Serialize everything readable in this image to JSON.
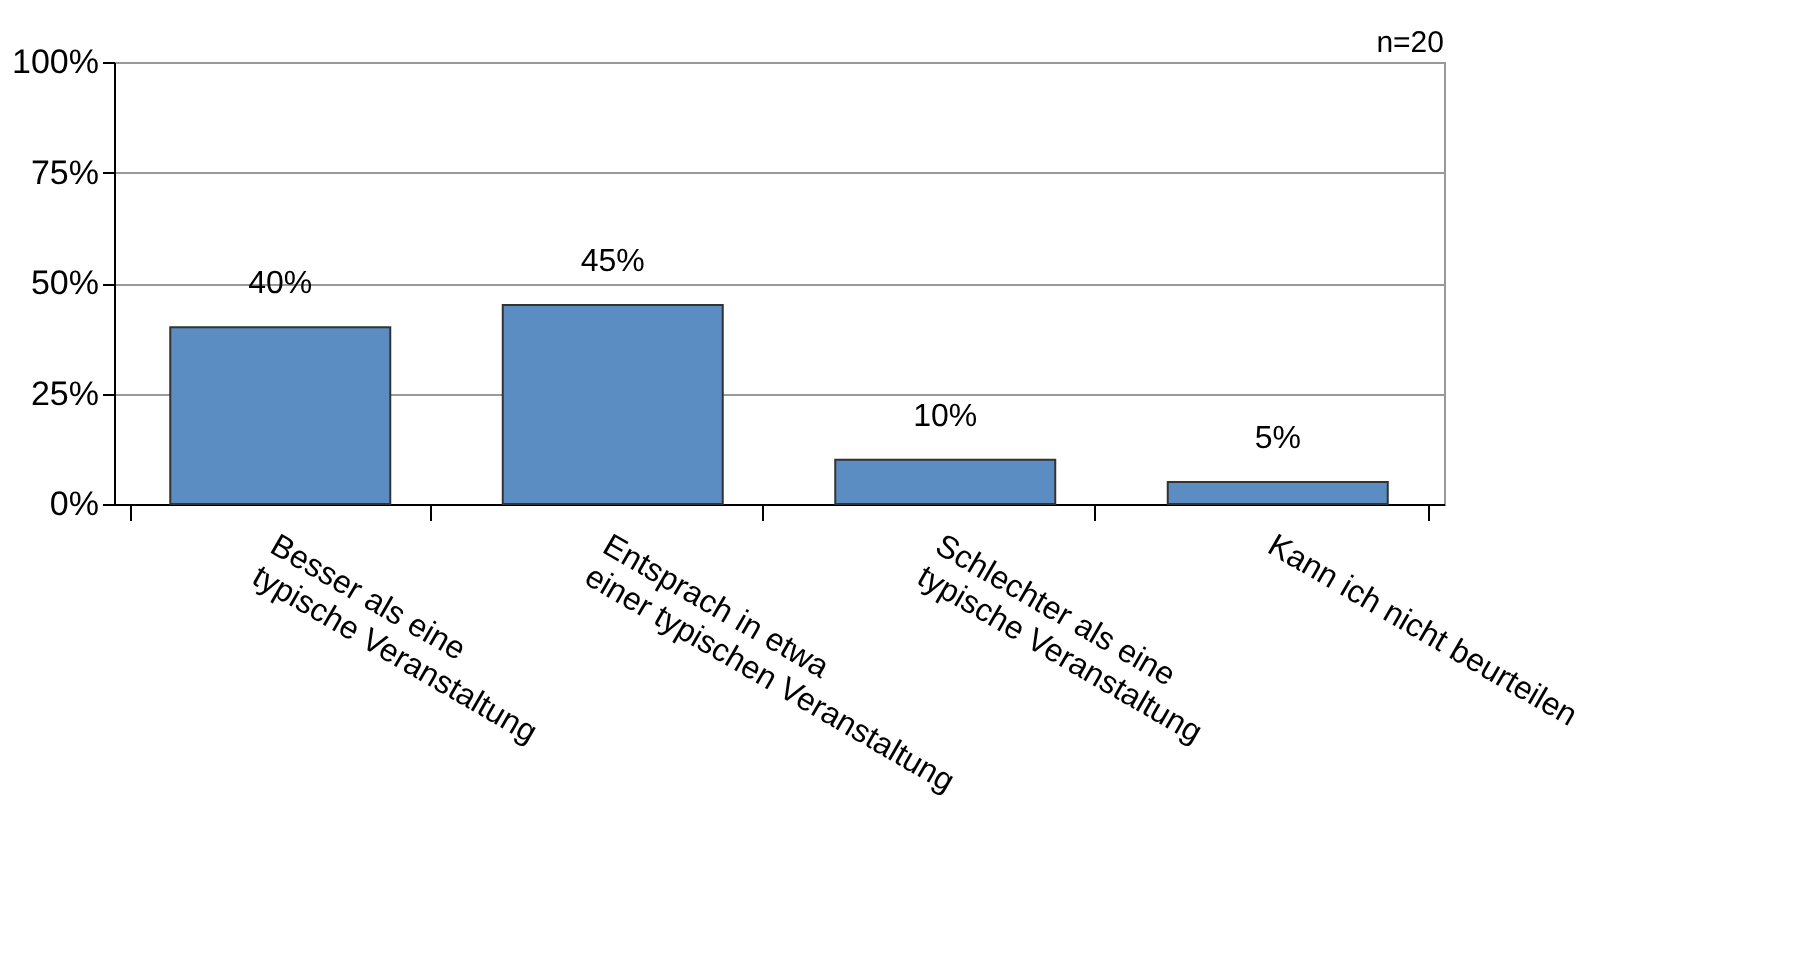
{
  "chart_data": {
    "type": "bar",
    "categories": [
      "Besser als eine\ntypische Veranstaltung",
      "Entsprach in etwa\neiner typischen Veranstaltung",
      "Schlechter als eine\ntypische Veranstaltung",
      "Kann ich nicht beurteilen"
    ],
    "values": [
      40,
      45,
      10,
      5
    ],
    "value_labels": [
      "40%",
      "45%",
      "10%",
      "5%"
    ],
    "color": "#5b8dc2",
    "ylim": [
      0,
      100
    ],
    "yticks": [
      {
        "value": 0,
        "label": "0%"
      },
      {
        "value": 25,
        "label": "25%"
      },
      {
        "value": 50,
        "label": "50%"
      },
      {
        "value": 75,
        "label": "75%"
      },
      {
        "value": 100,
        "label": "100%"
      }
    ],
    "grid": "y",
    "annotations": [
      "n=20"
    ]
  }
}
